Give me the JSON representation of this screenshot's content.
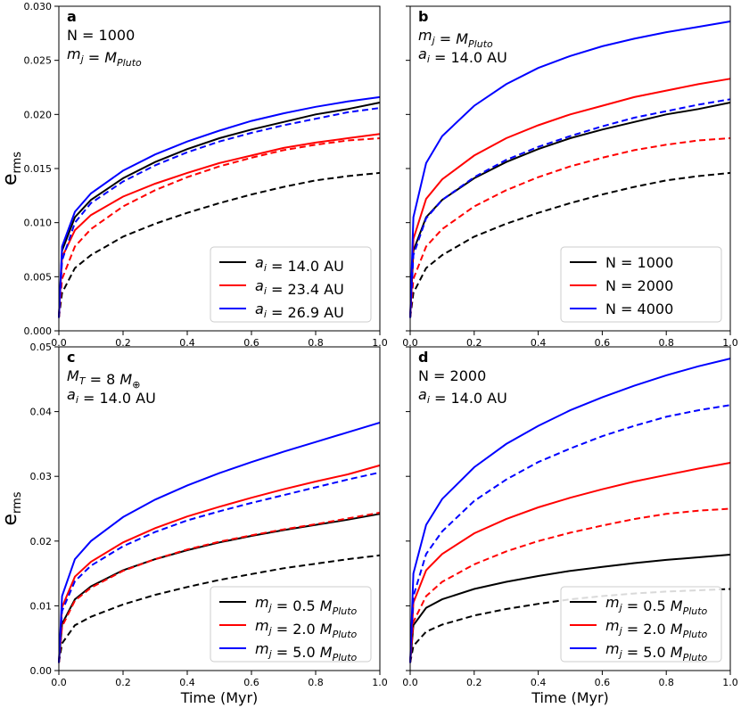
{
  "chart_data": [
    {
      "type": "line",
      "panel_label": "a",
      "annotations": [
        "N = 1000",
        "m_j = M_Pluto"
      ],
      "xlim": [
        0,
        1
      ],
      "ylim": [
        0,
        0.03
      ],
      "xticks": [
        "0.0",
        "0.2",
        "0.4",
        "0.6",
        "0.8",
        "1.0"
      ],
      "yticks": [
        "0.000",
        "0.005",
        "0.010",
        "0.015",
        "0.020",
        "0.025",
        "0.030"
      ],
      "xlabel": "",
      "ylabel": "e_rms",
      "legend": {
        "position": "lower-right",
        "entries": [
          {
            "label": "a_i = 14.0 AU",
            "color": "#000000"
          },
          {
            "label": "a_i = 23.4 AU",
            "color": "#ff0000"
          },
          {
            "label": "a_i = 26.9 AU",
            "color": "#0000ff"
          }
        ]
      },
      "series": [
        {
          "color": "#000000",
          "dash": false,
          "x": [
            0,
            0.01,
            0.05,
            0.1,
            0.2,
            0.3,
            0.4,
            0.5,
            0.6,
            0.7,
            0.8,
            0.9,
            1.0
          ],
          "y": [
            0.0012,
            0.0074,
            0.0105,
            0.0121,
            0.0141,
            0.0156,
            0.0168,
            0.0178,
            0.0186,
            0.0193,
            0.02,
            0.0205,
            0.0211
          ]
        },
        {
          "color": "#ff0000",
          "dash": false,
          "x": [
            0,
            0.01,
            0.05,
            0.1,
            0.2,
            0.3,
            0.4,
            0.5,
            0.6,
            0.7,
            0.8,
            0.9,
            1.0
          ],
          "y": [
            0.0012,
            0.0068,
            0.0093,
            0.0107,
            0.0124,
            0.0136,
            0.0146,
            0.0155,
            0.0162,
            0.0169,
            0.0174,
            0.0178,
            0.0182
          ]
        },
        {
          "color": "#0000ff",
          "dash": false,
          "x": [
            0,
            0.01,
            0.05,
            0.1,
            0.2,
            0.3,
            0.4,
            0.5,
            0.6,
            0.7,
            0.8,
            0.9,
            1.0
          ],
          "y": [
            0.0012,
            0.0078,
            0.011,
            0.0127,
            0.0148,
            0.0163,
            0.0175,
            0.0185,
            0.0194,
            0.0201,
            0.0207,
            0.0212,
            0.0216
          ]
        },
        {
          "color": "#000000",
          "dash": true,
          "x": [
            0,
            0.01,
            0.05,
            0.1,
            0.2,
            0.3,
            0.4,
            0.5,
            0.6,
            0.7,
            0.8,
            0.9,
            1.0
          ],
          "y": [
            0.0012,
            0.0035,
            0.0058,
            0.007,
            0.0087,
            0.0099,
            0.0109,
            0.0118,
            0.0126,
            0.0133,
            0.0139,
            0.0143,
            0.0146
          ]
        },
        {
          "color": "#ff0000",
          "dash": true,
          "x": [
            0,
            0.01,
            0.05,
            0.1,
            0.2,
            0.3,
            0.4,
            0.5,
            0.6,
            0.7,
            0.8,
            0.9,
            1.0
          ],
          "y": [
            0.0012,
            0.0048,
            0.0078,
            0.0094,
            0.0115,
            0.013,
            0.0142,
            0.0152,
            0.016,
            0.0167,
            0.0172,
            0.0176,
            0.0178
          ]
        },
        {
          "color": "#0000ff",
          "dash": true,
          "x": [
            0,
            0.01,
            0.05,
            0.1,
            0.2,
            0.3,
            0.4,
            0.5,
            0.6,
            0.7,
            0.8,
            0.9,
            1.0
          ],
          "y": [
            0.0012,
            0.0065,
            0.01,
            0.0118,
            0.0138,
            0.0153,
            0.0165,
            0.0175,
            0.0183,
            0.019,
            0.0196,
            0.0202,
            0.0206
          ]
        }
      ]
    },
    {
      "type": "line",
      "panel_label": "b",
      "annotations": [
        "m_j = M_Pluto",
        "a_i = 14.0 AU"
      ],
      "xlim": [
        0,
        1
      ],
      "ylim": [
        0,
        0.03
      ],
      "xticks": [
        "0.0",
        "0.2",
        "0.4",
        "0.6",
        "0.8",
        "1.0"
      ],
      "yticks": [],
      "xlabel": "",
      "ylabel": "",
      "legend": {
        "position": "lower-right",
        "entries": [
          {
            "label": "N = 1000",
            "color": "#000000"
          },
          {
            "label": "N = 2000",
            "color": "#ff0000"
          },
          {
            "label": "N = 4000",
            "color": "#0000ff"
          }
        ]
      },
      "series": [
        {
          "color": "#000000",
          "dash": false,
          "x": [
            0,
            0.01,
            0.05,
            0.1,
            0.2,
            0.3,
            0.4,
            0.5,
            0.6,
            0.7,
            0.8,
            0.9,
            1.0
          ],
          "y": [
            0.0012,
            0.0074,
            0.0105,
            0.0121,
            0.0141,
            0.0156,
            0.0168,
            0.0178,
            0.0186,
            0.0193,
            0.02,
            0.0205,
            0.0211
          ]
        },
        {
          "color": "#ff0000",
          "dash": false,
          "x": [
            0,
            0.01,
            0.05,
            0.1,
            0.2,
            0.3,
            0.4,
            0.5,
            0.6,
            0.7,
            0.8,
            0.9,
            1.0
          ],
          "y": [
            0.0012,
            0.0085,
            0.0122,
            0.014,
            0.0162,
            0.0178,
            0.019,
            0.02,
            0.0208,
            0.0216,
            0.0222,
            0.0228,
            0.0233
          ]
        },
        {
          "color": "#0000ff",
          "dash": false,
          "x": [
            0,
            0.01,
            0.05,
            0.1,
            0.2,
            0.3,
            0.4,
            0.5,
            0.6,
            0.7,
            0.8,
            0.9,
            1.0
          ],
          "y": [
            0.0012,
            0.0105,
            0.0155,
            0.018,
            0.0208,
            0.0228,
            0.0243,
            0.0254,
            0.0263,
            0.027,
            0.0276,
            0.0281,
            0.0286
          ]
        },
        {
          "color": "#000000",
          "dash": true,
          "x": [
            0,
            0.01,
            0.05,
            0.1,
            0.2,
            0.3,
            0.4,
            0.5,
            0.6,
            0.7,
            0.8,
            0.9,
            1.0
          ],
          "y": [
            0.0012,
            0.0035,
            0.0058,
            0.007,
            0.0087,
            0.0099,
            0.0109,
            0.0118,
            0.0126,
            0.0133,
            0.0139,
            0.0143,
            0.0146
          ]
        },
        {
          "color": "#ff0000",
          "dash": true,
          "x": [
            0,
            0.01,
            0.05,
            0.1,
            0.2,
            0.3,
            0.4,
            0.5,
            0.6,
            0.7,
            0.8,
            0.9,
            1.0
          ],
          "y": [
            0.0012,
            0.0048,
            0.0078,
            0.0094,
            0.0115,
            0.013,
            0.0142,
            0.0152,
            0.016,
            0.0167,
            0.0172,
            0.0176,
            0.0178
          ]
        },
        {
          "color": "#0000ff",
          "dash": true,
          "x": [
            0,
            0.01,
            0.05,
            0.1,
            0.2,
            0.3,
            0.4,
            0.5,
            0.6,
            0.7,
            0.8,
            0.9,
            1.0
          ],
          "y": [
            0.0012,
            0.007,
            0.0104,
            0.0121,
            0.0142,
            0.0158,
            0.017,
            0.018,
            0.0189,
            0.0197,
            0.0203,
            0.0209,
            0.0214
          ]
        }
      ]
    },
    {
      "type": "line",
      "panel_label": "c",
      "annotations": [
        "M_T = 8 M_⊕",
        "a_i = 14.0 AU"
      ],
      "xlim": [
        0,
        1
      ],
      "ylim": [
        0,
        0.05
      ],
      "xticks": [
        "0.0",
        "0.2",
        "0.4",
        "0.6",
        "0.8",
        "1.0"
      ],
      "yticks": [
        "0.00",
        "0.01",
        "0.02",
        "0.03",
        "0.04",
        "0.05"
      ],
      "xlabel": "Time (Myr)",
      "ylabel": "e_rms",
      "legend": {
        "position": "lower-right",
        "entries": [
          {
            "label": "m_j = 0.5 M_Pluto",
            "color": "#000000"
          },
          {
            "label": "m_j = 2.0 M_Pluto",
            "color": "#ff0000"
          },
          {
            "label": "m_j = 5.0 M_Pluto",
            "color": "#0000ff"
          }
        ]
      },
      "series": [
        {
          "color": "#000000",
          "dash": false,
          "x": [
            0,
            0.01,
            0.05,
            0.1,
            0.2,
            0.3,
            0.4,
            0.5,
            0.6,
            0.7,
            0.8,
            0.9,
            1.0
          ],
          "y": [
            0.0012,
            0.0072,
            0.011,
            0.013,
            0.0155,
            0.0172,
            0.0186,
            0.0198,
            0.0208,
            0.0217,
            0.0225,
            0.0233,
            0.0242
          ]
        },
        {
          "color": "#ff0000",
          "dash": false,
          "x": [
            0,
            0.01,
            0.05,
            0.1,
            0.2,
            0.3,
            0.4,
            0.5,
            0.6,
            0.7,
            0.8,
            0.9,
            1.0
          ],
          "y": [
            0.0012,
            0.0098,
            0.0145,
            0.0168,
            0.0198,
            0.022,
            0.0238,
            0.0253,
            0.0267,
            0.028,
            0.0292,
            0.0303,
            0.0317
          ]
        },
        {
          "color": "#0000ff",
          "dash": false,
          "x": [
            0,
            0.01,
            0.05,
            0.1,
            0.2,
            0.3,
            0.4,
            0.5,
            0.6,
            0.7,
            0.8,
            0.9,
            1.0
          ],
          "y": [
            0.0012,
            0.0115,
            0.0172,
            0.02,
            0.0237,
            0.0264,
            0.0286,
            0.0305,
            0.0322,
            0.0338,
            0.0353,
            0.0368,
            0.0383
          ]
        },
        {
          "color": "#000000",
          "dash": true,
          "x": [
            0,
            0.01,
            0.05,
            0.1,
            0.2,
            0.3,
            0.4,
            0.5,
            0.6,
            0.7,
            0.8,
            0.9,
            1.0
          ],
          "y": [
            0.0012,
            0.0042,
            0.007,
            0.0083,
            0.0102,
            0.0117,
            0.0129,
            0.014,
            0.0149,
            0.0158,
            0.0165,
            0.0172,
            0.0178
          ]
        },
        {
          "color": "#ff0000",
          "dash": true,
          "x": [
            0,
            0.01,
            0.05,
            0.1,
            0.2,
            0.3,
            0.4,
            0.5,
            0.6,
            0.7,
            0.8,
            0.9,
            1.0
          ],
          "y": [
            0.0012,
            0.0068,
            0.0108,
            0.0128,
            0.0154,
            0.0172,
            0.0187,
            0.0199,
            0.0209,
            0.0218,
            0.0226,
            0.0235,
            0.0244
          ]
        },
        {
          "color": "#0000ff",
          "dash": true,
          "x": [
            0,
            0.01,
            0.05,
            0.1,
            0.2,
            0.3,
            0.4,
            0.5,
            0.6,
            0.7,
            0.8,
            0.9,
            1.0
          ],
          "y": [
            0.0012,
            0.0092,
            0.0138,
            0.0162,
            0.0192,
            0.0214,
            0.0232,
            0.0246,
            0.0259,
            0.0271,
            0.0283,
            0.0295,
            0.0306
          ]
        }
      ]
    },
    {
      "type": "line",
      "panel_label": "d",
      "annotations": [
        "N = 2000",
        "a_i = 14.0 AU"
      ],
      "xlim": [
        0,
        1
      ],
      "ylim": [
        0,
        0.05
      ],
      "xticks": [
        "0.0",
        "0.2",
        "0.4",
        "0.6",
        "0.8",
        "1.0"
      ],
      "yticks": [],
      "xlabel": "Time (Myr)",
      "ylabel": "",
      "legend": {
        "position": "lower-right",
        "entries": [
          {
            "label": "m_j = 0.5 M_Pluto",
            "color": "#000000"
          },
          {
            "label": "m_j = 2.0 M_Pluto",
            "color": "#ff0000"
          },
          {
            "label": "m_j = 5.0 M_Pluto",
            "color": "#0000ff"
          }
        ]
      },
      "series": [
        {
          "color": "#000000",
          "dash": false,
          "x": [
            0,
            0.01,
            0.05,
            0.1,
            0.2,
            0.3,
            0.4,
            0.5,
            0.6,
            0.7,
            0.8,
            0.9,
            1.0
          ],
          "y": [
            0.0012,
            0.007,
            0.0097,
            0.011,
            0.0126,
            0.0137,
            0.0146,
            0.0154,
            0.016,
            0.0166,
            0.0171,
            0.0175,
            0.0179
          ]
        },
        {
          "color": "#ff0000",
          "dash": false,
          "x": [
            0,
            0.01,
            0.05,
            0.1,
            0.2,
            0.3,
            0.4,
            0.5,
            0.6,
            0.7,
            0.8,
            0.9,
            1.0
          ],
          "y": [
            0.0012,
            0.0105,
            0.0155,
            0.018,
            0.0212,
            0.0234,
            0.0252,
            0.0267,
            0.028,
            0.0292,
            0.0302,
            0.0312,
            0.0321
          ]
        },
        {
          "color": "#0000ff",
          "dash": false,
          "x": [
            0,
            0.01,
            0.05,
            0.1,
            0.2,
            0.3,
            0.4,
            0.5,
            0.6,
            0.7,
            0.8,
            0.9,
            1.0
          ],
          "y": [
            0.0012,
            0.015,
            0.0225,
            0.0265,
            0.0314,
            0.035,
            0.0378,
            0.0402,
            0.0422,
            0.044,
            0.0456,
            0.047,
            0.0482
          ]
        },
        {
          "color": "#000000",
          "dash": true,
          "x": [
            0,
            0.01,
            0.05,
            0.1,
            0.2,
            0.3,
            0.4,
            0.5,
            0.6,
            0.7,
            0.8,
            0.9,
            1.0
          ],
          "y": [
            0.0012,
            0.0038,
            0.006,
            0.0071,
            0.0085,
            0.0095,
            0.0103,
            0.011,
            0.0115,
            0.0119,
            0.0122,
            0.0124,
            0.0126
          ]
        },
        {
          "color": "#ff0000",
          "dash": true,
          "x": [
            0,
            0.01,
            0.05,
            0.1,
            0.2,
            0.3,
            0.4,
            0.5,
            0.6,
            0.7,
            0.8,
            0.9,
            1.0
          ],
          "y": [
            0.0012,
            0.0075,
            0.0115,
            0.0137,
            0.0164,
            0.0184,
            0.02,
            0.0213,
            0.0224,
            0.0234,
            0.0242,
            0.0247,
            0.025
          ]
        },
        {
          "color": "#0000ff",
          "dash": true,
          "x": [
            0,
            0.01,
            0.05,
            0.1,
            0.2,
            0.3,
            0.4,
            0.5,
            0.6,
            0.7,
            0.8,
            0.9,
            1.0
          ],
          "y": [
            0.0012,
            0.0115,
            0.018,
            0.0215,
            0.0262,
            0.0295,
            0.0322,
            0.0343,
            0.0362,
            0.0378,
            0.0392,
            0.0402,
            0.041
          ]
        }
      ]
    }
  ]
}
